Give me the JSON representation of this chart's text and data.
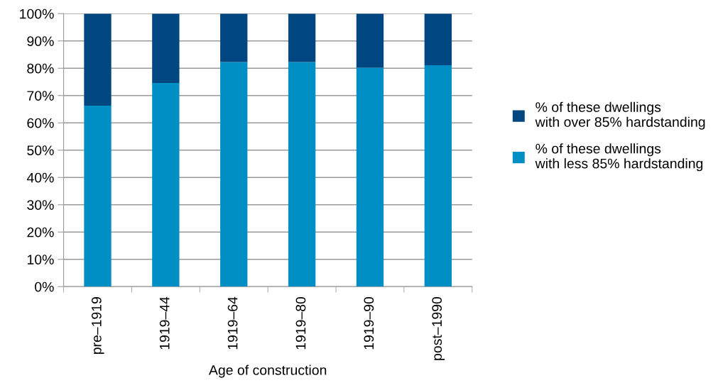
{
  "chart_data": {
    "type": "bar",
    "stacked": true,
    "xlabel": "Age of construction",
    "categories": [
      "pre–1919",
      "1919–44",
      "1919–64",
      "1919–80",
      "1919–90",
      "post–1990"
    ],
    "series": [
      {
        "name": "% of these dwellings\nwith less 85% hardstanding",
        "color": "#008fc5",
        "values": [
          66.3,
          74.6,
          82.3,
          82.3,
          80.2,
          81.1
        ]
      },
      {
        "name": "% of these dwellings\nwith over 85% hardstanding",
        "color": "#004680",
        "values": [
          33.7,
          25.4,
          17.7,
          17.7,
          19.8,
          18.9
        ]
      }
    ],
    "ylim": [
      0,
      100
    ],
    "yticks": [
      {
        "value": 0,
        "label": "0%"
      },
      {
        "value": 10,
        "label": "10%"
      },
      {
        "value": 20,
        "label": "20%"
      },
      {
        "value": 30,
        "label": "30%"
      },
      {
        "value": 40,
        "label": "40%"
      },
      {
        "value": 50,
        "label": "50%"
      },
      {
        "value": 60,
        "label": "60%"
      },
      {
        "value": 70,
        "label": "70%"
      },
      {
        "value": 80,
        "label": "80%"
      },
      {
        "value": 90,
        "label": "90%"
      },
      {
        "value": 100,
        "label": "100%"
      }
    ],
    "grid": "y",
    "legend": "right"
  }
}
